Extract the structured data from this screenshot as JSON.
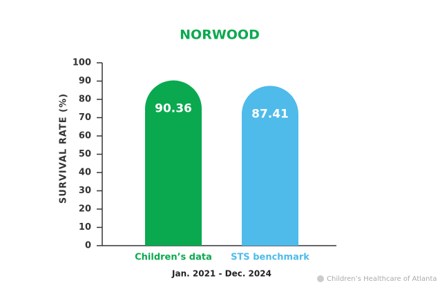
{
  "chart_data": {
    "type": "bar",
    "title": "NORWOOD",
    "y_label": "SURVIVAL RATE (%)",
    "x_label": "Jan. 2021 - Dec. 2024",
    "categories": [
      "Children’s data",
      "STS benchmark"
    ],
    "values": [
      90.36,
      87.41
    ],
    "colors": [
      "#0aa94f",
      "#4ebbea"
    ],
    "ylim": [
      0,
      100
    ],
    "yticks": [
      0,
      10,
      20,
      30,
      40,
      50,
      60,
      70,
      80,
      90,
      100
    ],
    "source": "Children’s Healthcare of Atlanta"
  }
}
